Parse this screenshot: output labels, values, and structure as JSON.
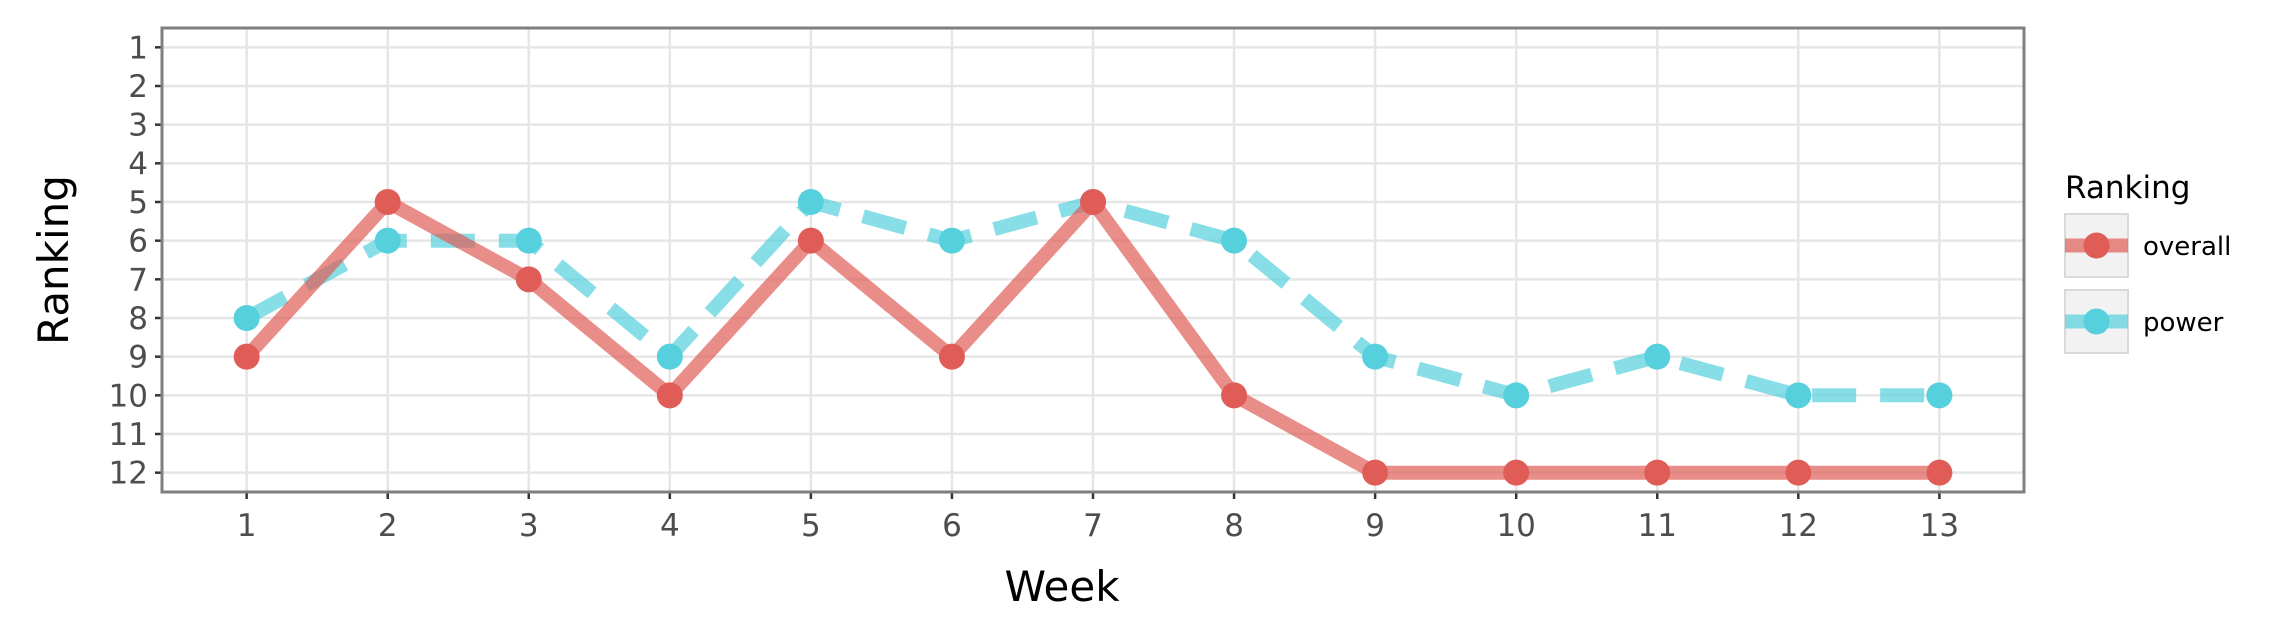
{
  "chart_data": {
    "type": "line",
    "x": [
      1,
      2,
      3,
      4,
      5,
      6,
      7,
      8,
      9,
      10,
      11,
      12,
      13
    ],
    "xlabel": "Week",
    "ylabel": "Ranking",
    "x_ticks": [
      "1",
      "2",
      "3",
      "4",
      "5",
      "6",
      "7",
      "8",
      "9",
      "10",
      "11",
      "12",
      "13"
    ],
    "y_ticks": [
      "1",
      "2",
      "3",
      "4",
      "5",
      "6",
      "7",
      "8",
      "9",
      "10",
      "11",
      "12"
    ],
    "xlim": [
      0.4,
      13.6
    ],
    "ylim": [
      12.5,
      0.5
    ],
    "y_reversed": true,
    "grid": true,
    "legend": {
      "title": "Ranking",
      "position": "right"
    },
    "series": [
      {
        "name": "overall",
        "color": "#e05d57",
        "linestyle": "solid",
        "values": [
          9,
          5,
          7,
          10,
          6,
          9,
          5,
          10,
          12,
          12,
          12,
          12,
          12
        ]
      },
      {
        "name": "power",
        "color": "#55d0dc",
        "linestyle": "dashed",
        "values": [
          8,
          6,
          6,
          9,
          5,
          6,
          5,
          6,
          9,
          10,
          9,
          10,
          10
        ]
      }
    ]
  }
}
